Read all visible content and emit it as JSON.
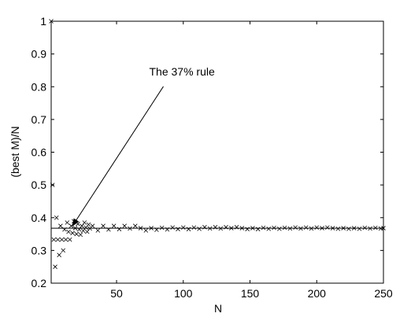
{
  "chart_data": {
    "type": "scatter",
    "xlabel": "N",
    "ylabel": "(best M)/N",
    "x": [
      1,
      2,
      3,
      4,
      5,
      6,
      7,
      8,
      9,
      10,
      11,
      12,
      13,
      14,
      15,
      16,
      17,
      18,
      19,
      20,
      21,
      22,
      23,
      24,
      25,
      26,
      27,
      28,
      29,
      30,
      32,
      36,
      40,
      44,
      48,
      52,
      56,
      60,
      64,
      68,
      72,
      76,
      80,
      84,
      88,
      92,
      96,
      100,
      104,
      108,
      112,
      116,
      120,
      124,
      128,
      132,
      136,
      140,
      144,
      148,
      152,
      156,
      160,
      164,
      168,
      172,
      176,
      180,
      184,
      188,
      192,
      196,
      200,
      204,
      208,
      212,
      216,
      220,
      224,
      228,
      232,
      236,
      240,
      244,
      248,
      250
    ],
    "values": [
      1,
      0.5,
      0.333,
      0.25,
      0.4,
      0.333,
      0.286,
      0.375,
      0.333,
      0.3,
      0.364,
      0.333,
      0.385,
      0.357,
      0.333,
      0.375,
      0.353,
      0.389,
      0.368,
      0.35,
      0.381,
      0.364,
      0.348,
      0.375,
      0.36,
      0.385,
      0.37,
      0.357,
      0.379,
      0.367,
      0.375,
      0.361,
      0.375,
      0.364,
      0.375,
      0.365,
      0.375,
      0.367,
      0.375,
      0.368,
      0.361,
      0.368,
      0.363,
      0.369,
      0.364,
      0.37,
      0.365,
      0.37,
      0.365,
      0.37,
      0.366,
      0.371,
      0.367,
      0.371,
      0.367,
      0.371,
      0.368,
      0.371,
      0.368,
      0.365,
      0.368,
      0.365,
      0.369,
      0.366,
      0.369,
      0.366,
      0.369,
      0.367,
      0.37,
      0.367,
      0.37,
      0.367,
      0.37,
      0.368,
      0.37,
      0.368,
      0.366,
      0.368,
      0.366,
      0.368,
      0.366,
      0.369,
      0.367,
      0.369,
      0.367,
      0.368
    ],
    "color": "#000000",
    "reference_line": 0.368,
    "annotation": {
      "text": "The 37% rule",
      "x": 78,
      "y": 0.82,
      "arrow_to": [
        17,
        0.375
      ]
    },
    "xlim": [
      1,
      250
    ],
    "xticks": [
      50,
      100,
      150,
      200,
      250
    ],
    "ylim": [
      0.2,
      1
    ],
    "yticks": [
      0.2,
      0.3,
      0.4,
      0.5,
      0.6,
      0.7,
      0.8,
      0.9,
      1
    ]
  }
}
